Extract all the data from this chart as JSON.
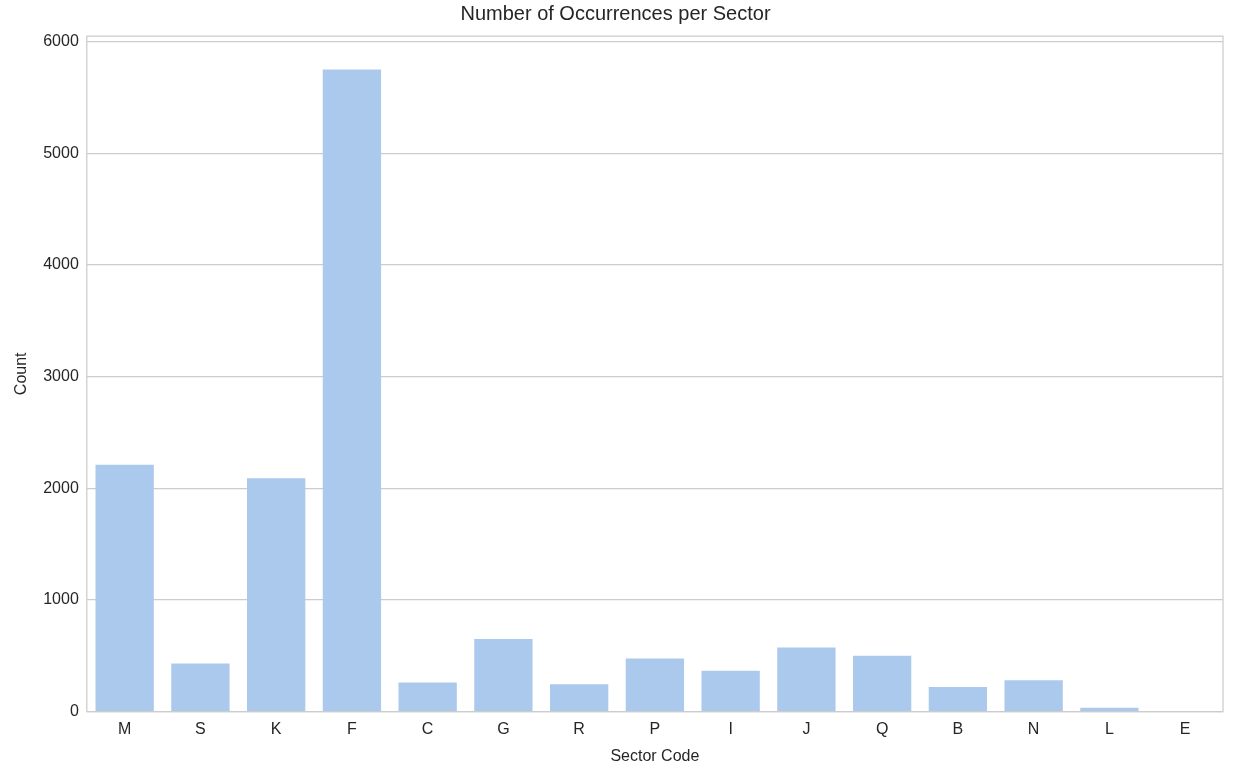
{
  "chart_data": {
    "type": "bar",
    "title": "Number of Occurrences per Sector",
    "xlabel": "Sector Code",
    "ylabel": "Count",
    "categories": [
      "M",
      "S",
      "K",
      "F",
      "C",
      "G",
      "R",
      "P",
      "I",
      "J",
      "Q",
      "B",
      "N",
      "L",
      "E"
    ],
    "values": [
      2210,
      430,
      2090,
      5750,
      260,
      650,
      245,
      475,
      365,
      575,
      500,
      220,
      280,
      35,
      2
    ],
    "color": "#abc9ed",
    "ylim": [
      0,
      6050
    ],
    "yticks": [
      0,
      1000,
      2000,
      3000,
      4000,
      5000,
      6000
    ],
    "grid": "y"
  }
}
